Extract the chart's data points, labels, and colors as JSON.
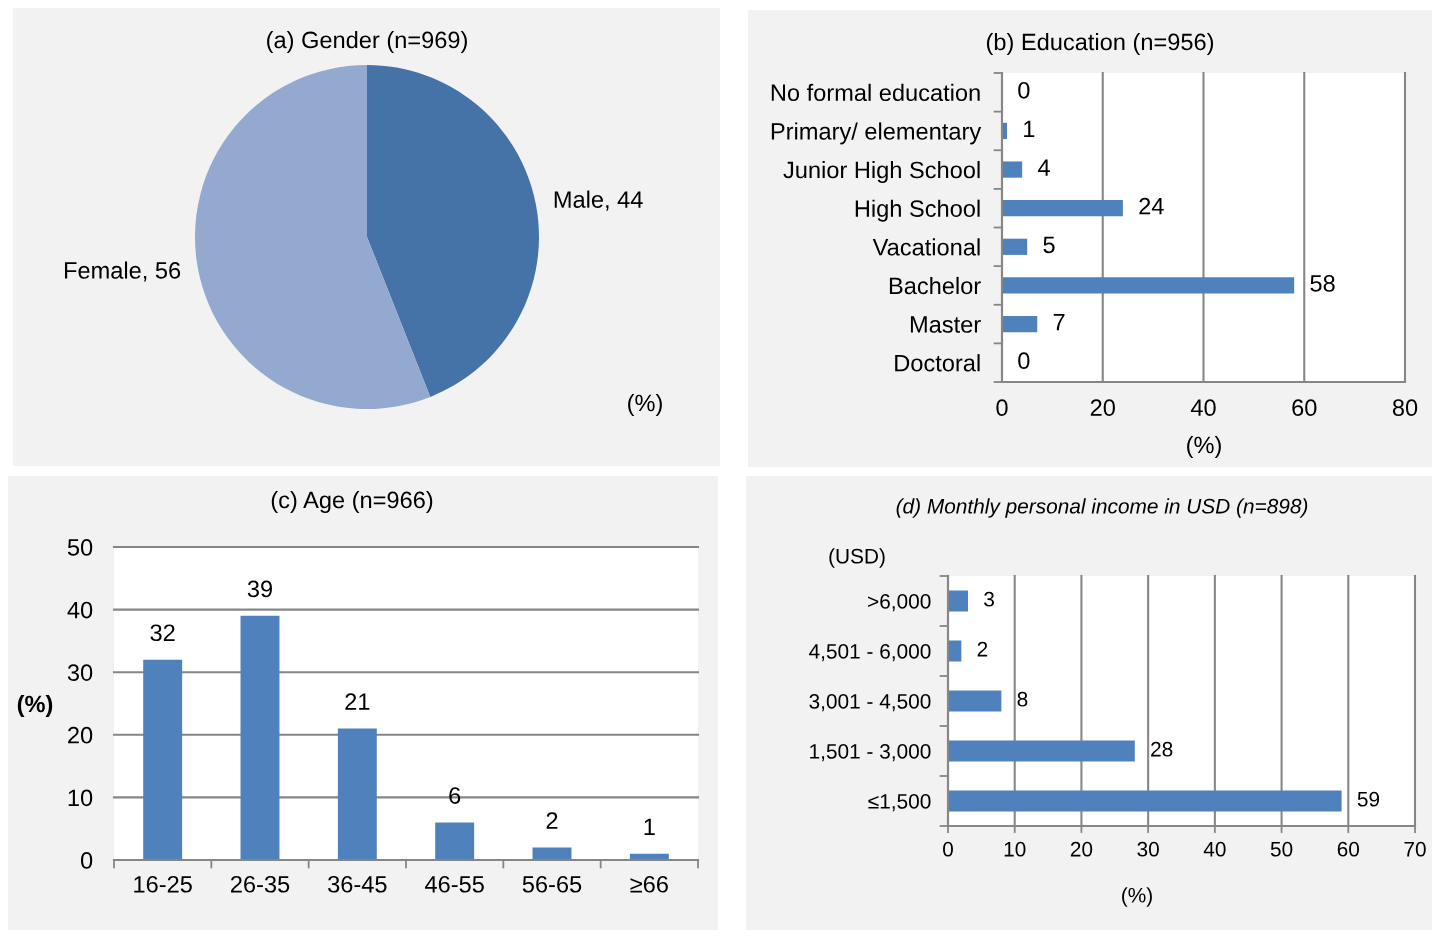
{
  "chart_data": [
    {
      "type": "pie",
      "title": "(a) Gender (n=969)",
      "categories": [
        "Male",
        "Female"
      ],
      "values": [
        44,
        56
      ],
      "colors": [
        "#4572a7",
        "#93a9cf"
      ],
      "value_labels": [
        ", 44",
        ", 56"
      ],
      "annotations": [
        "(%)"
      ]
    },
    {
      "type": "bar",
      "orientation": "horizontal",
      "title": "(b) Education (n=956)",
      "categories": [
        "No formal education",
        "Primary/ elementary",
        "Junior High School",
        "High School",
        "Vacational",
        "Bachelor",
        "Master",
        "Doctoral"
      ],
      "values": [
        0,
        1,
        4,
        24,
        5,
        58,
        7,
        0
      ],
      "color": "#4f81bd",
      "xlabel": "(%)",
      "xlim": [
        0,
        80
      ],
      "xticks": [
        0,
        20,
        40,
        60,
        80
      ],
      "grid": "x",
      "data_labels": true
    },
    {
      "type": "bar",
      "title": "(c) Age (n=966)",
      "categories": [
        "16-25",
        "26-35",
        "36-45",
        "46-55",
        "56-65",
        "≥66"
      ],
      "values": [
        32,
        39,
        21,
        6,
        2,
        1
      ],
      "color": "#4f81bd",
      "ylabel": "(%)",
      "ylim": [
        0,
        50
      ],
      "yticks": [
        0,
        10,
        20,
        30,
        40,
        50
      ],
      "grid": "y",
      "data_labels": true
    },
    {
      "type": "bar",
      "orientation": "horizontal",
      "title": "(d) Monthly personal income in USD (n=898)",
      "categories": [
        ">6,000",
        "4,501 - 6,000",
        "3,001 - 4,500",
        "1,501 - 3,000",
        "≤1,500"
      ],
      "values": [
        3,
        2,
        8,
        28,
        59
      ],
      "color": "#4f81bd",
      "xlabel": "(%)",
      "ylabel": "(USD)",
      "xlim": [
        0,
        70
      ],
      "xticks": [
        0,
        10,
        20,
        30,
        40,
        50,
        60,
        70
      ],
      "grid": "x",
      "data_labels": true
    }
  ]
}
